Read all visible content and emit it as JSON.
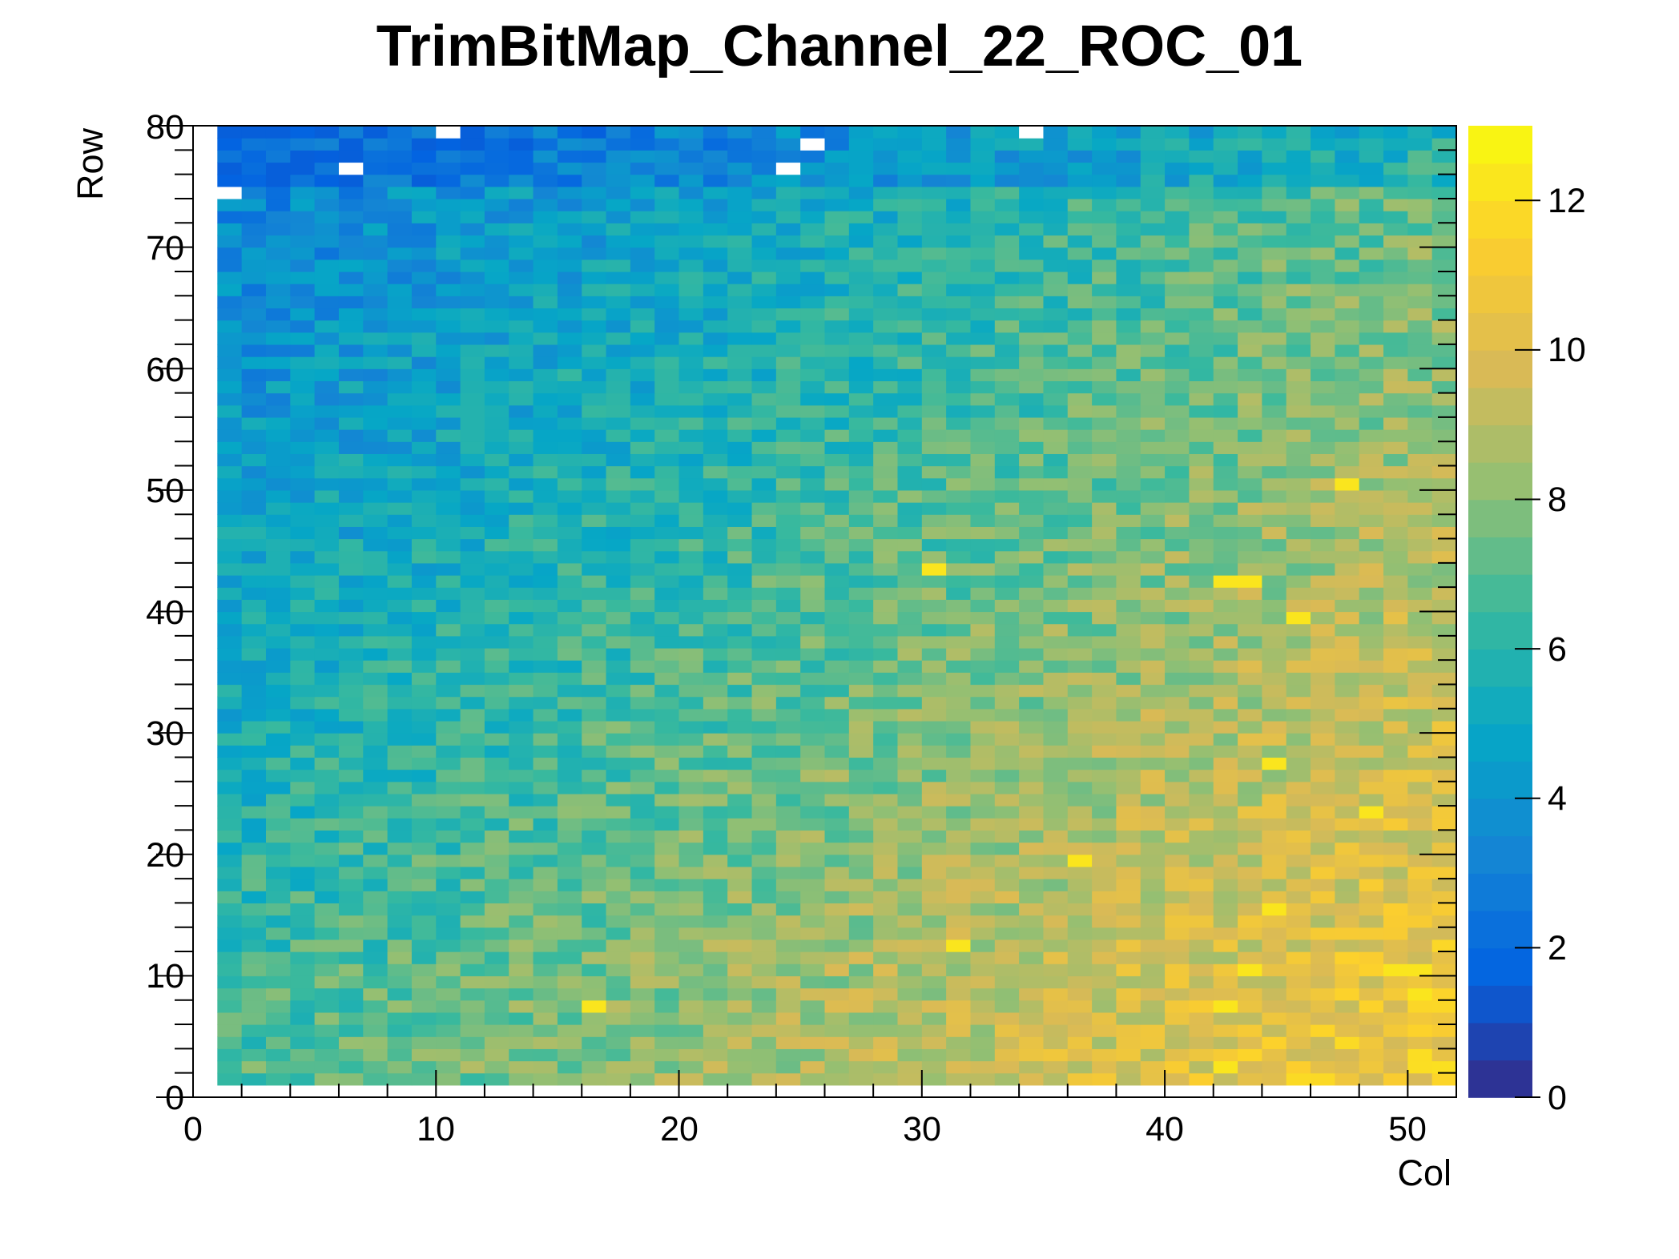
{
  "chart_data": {
    "type": "heatmap",
    "title": "TrimBitMap_Channel_22_ROC_01",
    "xlabel": "Col",
    "ylabel": "Row",
    "xlim": [
      0,
      52
    ],
    "ylim": [
      0,
      80
    ],
    "zlim": [
      0,
      13
    ],
    "x_ticks": [
      "0",
      "10",
      "20",
      "30",
      "40",
      "50"
    ],
    "y_ticks": [
      "0",
      "10",
      "20",
      "30",
      "40",
      "50",
      "60",
      "70",
      "80"
    ],
    "z_ticks": [
      "0",
      "2",
      "4",
      "6",
      "8",
      "10",
      "12"
    ],
    "colormap": "kBird",
    "color_stops": [
      "#352a87",
      "#0363e1",
      "#1485d4",
      "#06a7c6",
      "#38b99e",
      "#92bf73",
      "#d9ba56",
      "#fcce2e",
      "#f9fb0e"
    ],
    "cell_range": {
      "cols": [
        1,
        51
      ],
      "rows": [
        1,
        79
      ]
    },
    "description": "Trim-bit value per pixel: low values (2-5, blue) toward top-left, high values (9-12, yellow/orange) toward bottom-right",
    "empty_cells": [
      [
        1,
        74
      ],
      [
        6,
        76
      ],
      [
        10,
        79
      ],
      [
        24,
        76
      ],
      [
        25,
        78
      ],
      [
        34,
        79
      ]
    ],
    "bright_cells": [
      [
        47,
        50
      ],
      [
        45,
        39
      ],
      [
        42,
        42
      ],
      [
        43,
        42
      ],
      [
        36,
        19
      ],
      [
        44,
        15
      ],
      [
        43,
        10
      ],
      [
        42,
        7
      ],
      [
        49,
        10
      ],
      [
        50,
        10
      ],
      [
        50,
        8
      ],
      [
        44,
        27
      ],
      [
        48,
        23
      ],
      [
        42,
        2
      ],
      [
        16,
        7
      ],
      [
        31,
        12
      ],
      [
        30,
        43
      ]
    ]
  }
}
